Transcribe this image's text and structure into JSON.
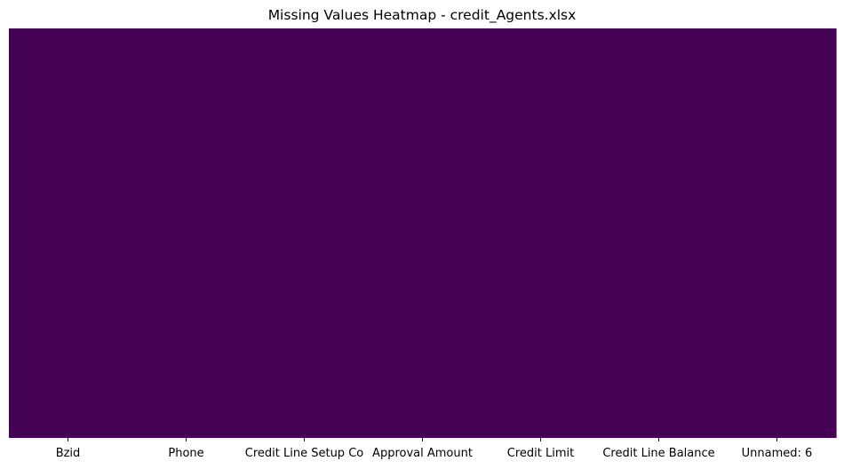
{
  "chart_data": {
    "type": "heatmap",
    "title": "Missing Values Heatmap - credit_Agents.xlsx",
    "xlabel": "",
    "ylabel": "",
    "columns": [
      "Bzid",
      "Phone",
      "Credit Line Setup Co",
      "Approval Amount",
      "Credit Limit",
      "Credit Line Balance",
      "Unnamed: 6"
    ],
    "missing": [
      false,
      false,
      false,
      false,
      false,
      false,
      false
    ],
    "y_ticks_visible": false,
    "grid": false,
    "legend": "none",
    "colors": {
      "present": "#440154",
      "missing": "#fde725"
    }
  }
}
